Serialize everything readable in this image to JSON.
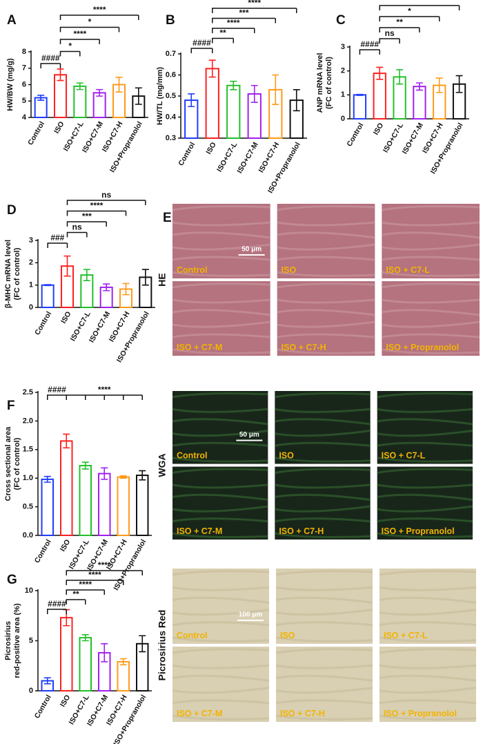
{
  "chart_data": [
    {
      "type": "bar",
      "letter": "A",
      "ylabel": [
        "HW/BW (mg/g)"
      ],
      "categories": [
        "Control",
        "ISO",
        "ISO+C7-L",
        "ISO+C7-M",
        "ISO+C7-H",
        "ISO+Propranolol"
      ],
      "colors": [
        "#1f3cff",
        "#ff2020",
        "#22c02a",
        "#a020f0",
        "#ff9a1a",
        "#111111"
      ],
      "values": [
        5.2,
        6.6,
        5.9,
        5.5,
        6.0,
        5.3
      ],
      "errors": [
        0.15,
        0.35,
        0.2,
        0.2,
        0.45,
        0.5
      ],
      "ylim": [
        4,
        8
      ],
      "yticks": [
        4,
        5,
        6,
        7,
        8
      ],
      "brackets": [
        {
          "label": "####",
          "from": "Control",
          "to": [
            "ISO"
          ]
        },
        {
          "label": "*",
          "from": "ISO",
          "to": [
            "ISO+C7-L"
          ]
        },
        {
          "label": "****",
          "from": "ISO",
          "to": [
            "ISO+C7-M"
          ]
        },
        {
          "label": "*",
          "from": "ISO",
          "to": [
            "ISO+C7-H"
          ]
        },
        {
          "label": "****",
          "from": "ISO",
          "to": [
            "ISO+Propranolol"
          ]
        }
      ]
    },
    {
      "type": "bar",
      "letter": "B",
      "ylabel": [
        "HW/TL (mg/mm)"
      ],
      "categories": [
        "Control",
        "ISO",
        "ISO+C7-L",
        "ISO+C7-M",
        "ISO+C7-H",
        "ISO+Propranolol"
      ],
      "colors": [
        "#1f3cff",
        "#ff2020",
        "#22c02a",
        "#a020f0",
        "#ff9a1a",
        "#111111"
      ],
      "values": [
        0.48,
        0.63,
        0.55,
        0.51,
        0.53,
        0.48
      ],
      "errors": [
        0.03,
        0.04,
        0.02,
        0.04,
        0.07,
        0.05
      ],
      "ylim": [
        0.3,
        0.7
      ],
      "yticks": [
        0.3,
        0.4,
        0.5,
        0.6,
        0.7
      ],
      "brackets": [
        {
          "label": "####",
          "from": "Control",
          "to": [
            "ISO"
          ]
        },
        {
          "label": "**",
          "from": "ISO",
          "to": [
            "ISO+C7-L"
          ]
        },
        {
          "label": "****",
          "from": "ISO",
          "to": [
            "ISO+C7-M"
          ]
        },
        {
          "label": "***",
          "from": "ISO",
          "to": [
            "ISO+C7-H"
          ]
        },
        {
          "label": "****",
          "from": "ISO",
          "to": [
            "ISO+Propranolol"
          ]
        }
      ]
    },
    {
      "type": "bar",
      "letter": "C",
      "ylabel": [
        "ANP mRNA level",
        "(FC of control)"
      ],
      "categories": [
        "Control",
        "ISO",
        "ISO+C7-L",
        "ISO+C7-M",
        "ISO+C7-H",
        "ISO+Propranolol"
      ],
      "colors": [
        "#1f3cff",
        "#ff2020",
        "#22c02a",
        "#a020f0",
        "#ff9a1a",
        "#111111"
      ],
      "values": [
        1.0,
        1.9,
        1.75,
        1.35,
        1.4,
        1.45
      ],
      "errors": [
        0.02,
        0.25,
        0.3,
        0.15,
        0.3,
        0.35
      ],
      "ylim": [
        0,
        3
      ],
      "yticks": [
        0,
        1,
        2,
        3
      ],
      "brackets": [
        {
          "label": "####",
          "from": "Control",
          "to": [
            "ISO"
          ]
        },
        {
          "label": "ns",
          "from": "ISO",
          "to": [
            "ISO+C7-L"
          ]
        },
        {
          "label": "**",
          "from": "ISO",
          "to": [
            "ISO+C7-M"
          ]
        },
        {
          "label": "*",
          "from": "ISO",
          "to": [
            "ISO+C7-H"
          ]
        },
        {
          "label": "*",
          "from": "ISO",
          "to": [
            "ISO+Propranolol"
          ]
        }
      ]
    },
    {
      "type": "bar",
      "letter": "D",
      "ylabel": [
        "β-MHC mRNA level",
        "(FC of control)"
      ],
      "categories": [
        "Control",
        "ISO",
        "ISO+C7-L",
        "ISO+C7-M",
        "ISO+C7-H",
        "ISO+Propranolol"
      ],
      "colors": [
        "#1f3cff",
        "#ff2020",
        "#22c02a",
        "#a020f0",
        "#ff9a1a",
        "#111111"
      ],
      "values": [
        1.0,
        1.85,
        1.45,
        0.9,
        0.82,
        1.35
      ],
      "errors": [
        0.02,
        0.45,
        0.25,
        0.15,
        0.25,
        0.35
      ],
      "ylim": [
        0,
        3
      ],
      "yticks": [
        0,
        1,
        2,
        3
      ],
      "brackets": [
        {
          "label": "###",
          "from": "Control",
          "to": [
            "ISO"
          ]
        },
        {
          "label": "ns",
          "from": "ISO",
          "to": [
            "ISO+C7-L"
          ]
        },
        {
          "label": "***",
          "from": "ISO",
          "to": [
            "ISO+C7-M"
          ]
        },
        {
          "label": "****",
          "from": "ISO",
          "to": [
            "ISO+C7-H"
          ]
        },
        {
          "label": "ns",
          "from": "ISO",
          "to": [
            "ISO+Propranolol"
          ]
        }
      ]
    },
    {
      "type": "bar",
      "letter": "F",
      "ylabel": [
        "Cross sectional area",
        "(FC of control)"
      ],
      "categories": [
        "Control",
        "ISO",
        "ISO+C7-L",
        "ISO+C7-M",
        "ISO+C7-H",
        "ISO+Propranolol"
      ],
      "colors": [
        "#1f3cff",
        "#ff2020",
        "#22c02a",
        "#a020f0",
        "#ff9a1a",
        "#111111"
      ],
      "values": [
        0.98,
        1.65,
        1.22,
        1.08,
        1.02,
        1.05
      ],
      "errors": [
        0.05,
        0.12,
        0.06,
        0.1,
        0.02,
        0.08
      ],
      "ylim": [
        0,
        2.5
      ],
      "yticks": [
        {
          "value": 0,
          "label": "0.0"
        },
        0.5,
        {
          "value": 1,
          "label": "1.0"
        },
        1.5,
        {
          "value": 2,
          "label": "2.0"
        },
        2.5
      ],
      "brackets": [
        {
          "label": "####",
          "from": "Control",
          "to": [
            "ISO"
          ]
        },
        {
          "label": "****",
          "from": "ISO",
          "to": [
            "ISO+C7-L",
            "ISO+C7-M",
            "ISO+C7-H",
            "ISO+Propranolol"
          ]
        }
      ]
    },
    {
      "type": "bar",
      "letter": "G",
      "ylabel": [
        "Picrosirius",
        "red-positive area (%)"
      ],
      "categories": [
        "Control",
        "ISO",
        "ISO+C7-L",
        "ISO+C7-M",
        "ISO+C7-H",
        "ISO+Propranolol"
      ],
      "colors": [
        "#1f3cff",
        "#ff2020",
        "#22c02a",
        "#a020f0",
        "#ff9a1a",
        "#111111"
      ],
      "values": [
        1.0,
        7.3,
        5.3,
        3.8,
        2.9,
        4.7
      ],
      "errors": [
        0.3,
        0.8,
        0.3,
        0.9,
        0.3,
        0.8
      ],
      "ylim": [
        0,
        10
      ],
      "yticks": [
        0,
        5,
        10
      ],
      "brackets": [
        {
          "label": "####",
          "from": "Control",
          "to": [
            "ISO"
          ]
        },
        {
          "label": "**",
          "from": "ISO",
          "to": [
            "ISO+C7-L"
          ]
        },
        {
          "label": "****",
          "from": "ISO",
          "to": [
            "ISO+C7-M"
          ]
        },
        {
          "label": "****",
          "from": "ISO",
          "to": [
            "ISO+C7-H"
          ]
        },
        {
          "label": "****",
          "from": "ISO",
          "to": [
            "ISO+Propranolol"
          ]
        }
      ]
    }
  ],
  "image_panels": [
    {
      "letter": "E",
      "stain": "HE",
      "scale_bar": "50 μm",
      "labels": [
        "Control",
        "ISO",
        "ISO + C7-L",
        "ISO + C7-M",
        "ISO + C7-H",
        "ISO + Propranolol"
      ]
    },
    {
      "stain": "WGA",
      "scale_bar": "50 μm",
      "labels": [
        "Control",
        "ISO",
        "ISO + C7-L",
        "ISO + C7-M",
        "ISO + C7-H",
        "ISO + Propranolol"
      ]
    },
    {
      "stain": "Picrosirius Red",
      "scale_bar": "100 μm",
      "labels": [
        "Control",
        "ISO",
        "ISO + C7-L",
        "ISO + C7-M",
        "ISO + C7-H",
        "ISO + Propranolol"
      ]
    }
  ]
}
